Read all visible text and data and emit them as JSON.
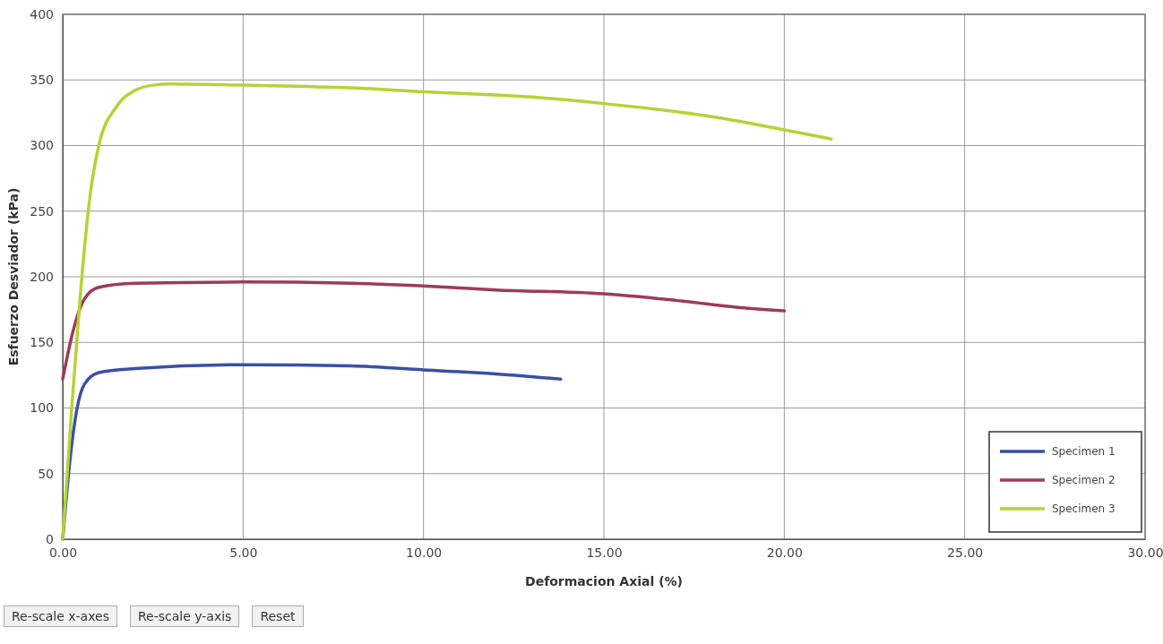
{
  "chart_data": {
    "type": "line",
    "xlabel": "Deformacion Axial (%)",
    "ylabel": "Esfuerzo Desviador (kPa)",
    "xlim": [
      0,
      30
    ],
    "xticks": [
      {
        "value": 0,
        "label": "0.00"
      },
      {
        "value": 5,
        "label": "5.00"
      },
      {
        "value": 10,
        "label": "10.00"
      },
      {
        "value": 15,
        "label": "15.00"
      },
      {
        "value": 20,
        "label": "20.00"
      },
      {
        "value": 25,
        "label": "25.00"
      },
      {
        "value": 30,
        "label": "30.00"
      }
    ],
    "ylim": [
      0,
      400
    ],
    "yticks": [
      0,
      50,
      100,
      150,
      200,
      250,
      300,
      350,
      400
    ],
    "grid": true,
    "legend": "bottom right",
    "marker": "none",
    "line_style": "solid",
    "series": [
      {
        "name": "Specimen 1",
        "color": "#3a4fa8",
        "x": [
          0,
          0.2,
          0.4,
          0.6,
          1,
          2,
          5,
          8,
          10,
          12,
          13.8
        ],
        "values": [
          0,
          60,
          100,
          118,
          127,
          130,
          133,
          132,
          129,
          126,
          122
        ]
      },
      {
        "name": "Specimen 2",
        "color": "#9e3a5a",
        "x": [
          0,
          0.3,
          0.6,
          1,
          2,
          5,
          8,
          10,
          12,
          15,
          17,
          19,
          20
        ],
        "values": [
          122,
          160,
          183,
          192,
          195,
          196,
          195,
          193,
          190,
          187,
          182,
          176,
          174
        ]
      },
      {
        "name": "Specimen 3",
        "color": "#b5d334",
        "x": [
          0,
          0.25,
          0.5,
          0.75,
          1,
          1.5,
          2,
          2.5,
          3,
          5,
          8,
          10,
          13,
          15,
          18,
          20,
          21.3
        ],
        "values": [
          0,
          100,
          190,
          260,
          300,
          330,
          342,
          346,
          347,
          346,
          344,
          341,
          337,
          332,
          322,
          312,
          305
        ]
      }
    ],
    "annotations": [
      "Re-scale x-axes",
      "Re-scale y-axis",
      "Reset"
    ]
  }
}
